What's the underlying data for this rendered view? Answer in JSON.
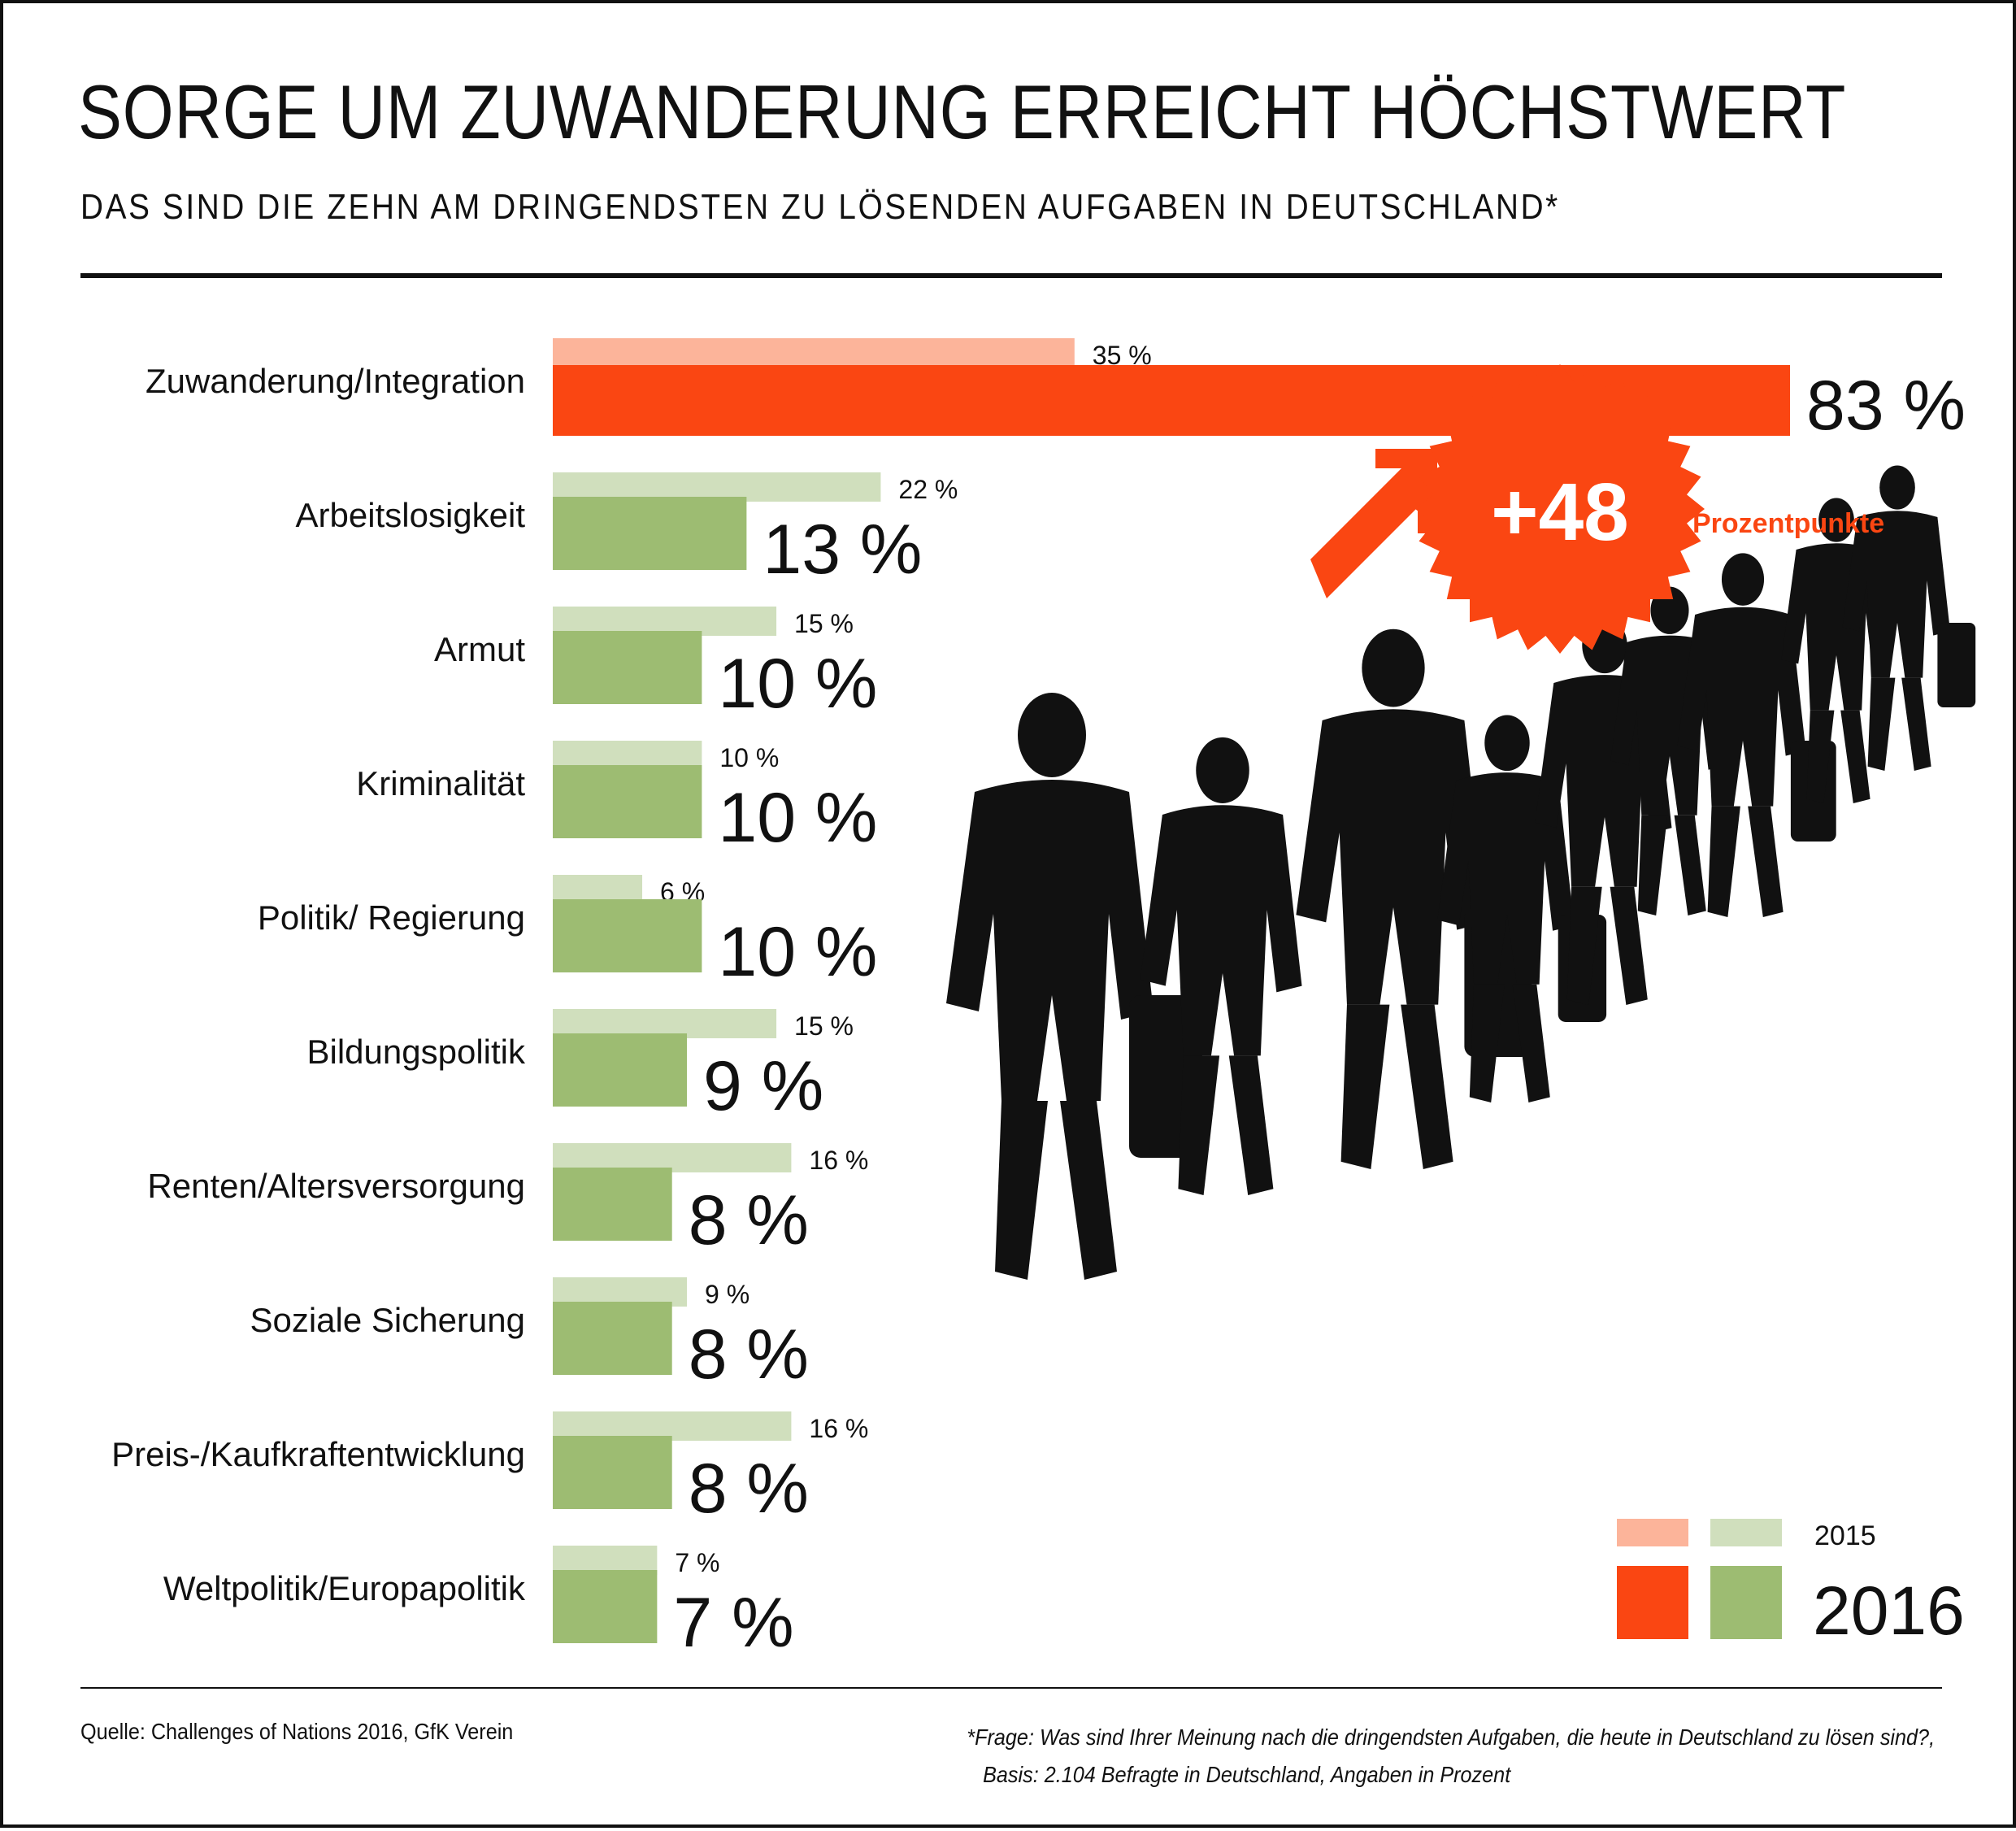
{
  "title": "SORGE UM ZUWANDERUNG ERREICHT HÖCHSTWERT",
  "subtitle": "DAS SIND DIE ZEHN AM DRINGENDSTEN ZU LÖSENDEN AUFGABEN IN DEUTSCHLAND*",
  "chart_data": {
    "type": "bar",
    "orientation": "horizontal",
    "categories": [
      "Zuwanderung/Integration",
      "Arbeitslosigkeit",
      "Armut",
      "Kriminalität",
      "Politik/ Regierung",
      "Bildungspolitik",
      "Renten/Altersversorgung",
      "Soziale Sicherung",
      "Preis-/Kaufkraftentwicklung",
      "Weltpolitik/Europapolitik"
    ],
    "series": [
      {
        "name": "2015",
        "values": [
          35,
          22,
          15,
          10,
          6,
          15,
          16,
          9,
          16,
          7
        ],
        "labels": [
          "35 %",
          "22 %",
          "15 %",
          "10 %",
          "6 %",
          "15 %",
          "16 %",
          "9 %",
          "16 %",
          "7 %"
        ]
      },
      {
        "name": "2016",
        "values": [
          83,
          13,
          10,
          10,
          10,
          9,
          8,
          8,
          8,
          7
        ],
        "labels": [
          "83 %",
          "13 %",
          "10 %",
          "10 %",
          "10 %",
          "9 %",
          "8 %",
          "8 %",
          "8 %",
          "7 %"
        ]
      }
    ],
    "highlight_colors": {
      "2015": "#fcb49a",
      "2016": "#fa4612"
    },
    "other_colors": {
      "2015": "#d0dfbd",
      "2016": "#9dbc72"
    },
    "xlim": [
      0,
      83
    ],
    "grid": false,
    "legend": "bottom-right",
    "annotation": {
      "value": "+48",
      "label": "Prozentpunkte",
      "color": "#fa4612"
    }
  },
  "source": "Quelle: Challenges of Nations 2016, GfK Verein",
  "footnote": {
    "line1": "*Frage: Was sind Ihrer Meinung nach die dringendsten Aufgaben, die heute in Deutschland zu lösen sind?,",
    "line2": "Basis: 2.104 Befragte in Deutschland, Angaben in Prozent"
  }
}
